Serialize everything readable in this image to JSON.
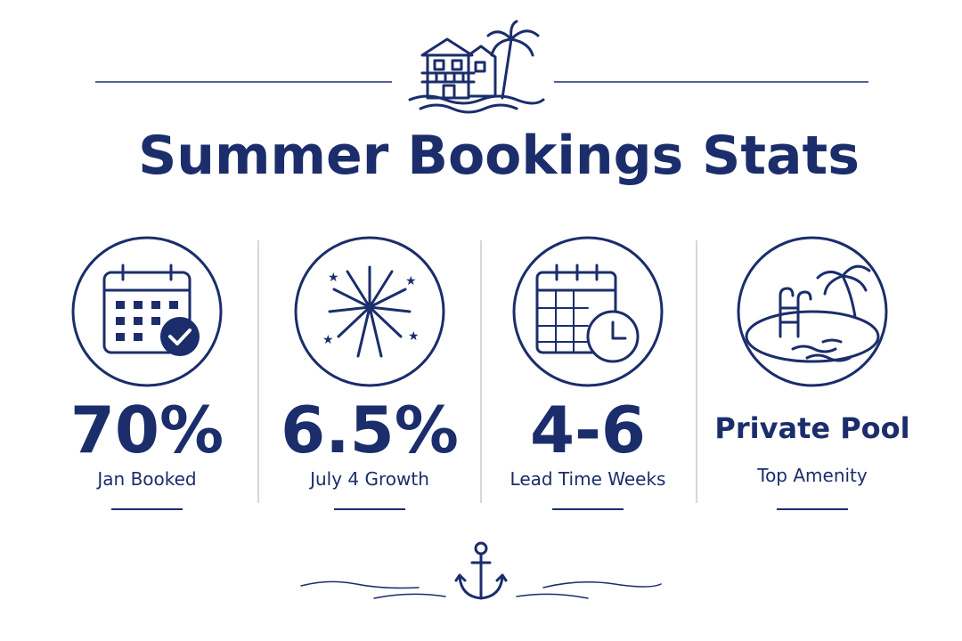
{
  "header": {
    "title": "Summer Bookings Stats"
  },
  "stats": [
    {
      "value": "70%",
      "label": "Jan Booked"
    },
    {
      "value": "6.5%",
      "label": "July 4 Growth"
    },
    {
      "value": "4-6",
      "label": "Lead Time Weeks"
    },
    {
      "value": "Private Pool",
      "label": "Top Amenity"
    }
  ]
}
